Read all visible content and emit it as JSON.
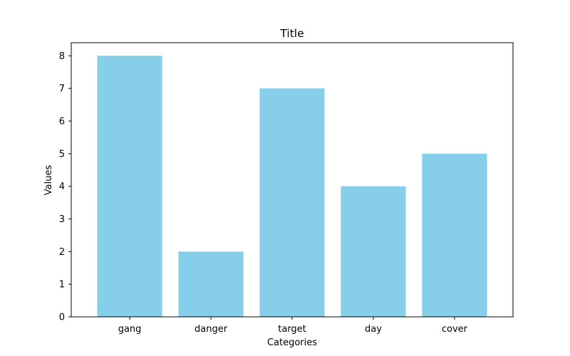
{
  "chart_data": {
    "type": "bar",
    "title": "Title",
    "xlabel": "Categories",
    "ylabel": "Values",
    "categories": [
      "gang",
      "danger",
      "target",
      "day",
      "cover"
    ],
    "values": [
      8,
      2,
      7,
      4,
      5
    ],
    "ylim": [
      0,
      8.4
    ],
    "yticks": [
      "0",
      "1",
      "2",
      "3",
      "4",
      "5",
      "6",
      "7",
      "8"
    ],
    "bar_color": "#87ceeb",
    "grid": false,
    "legend": "none"
  }
}
